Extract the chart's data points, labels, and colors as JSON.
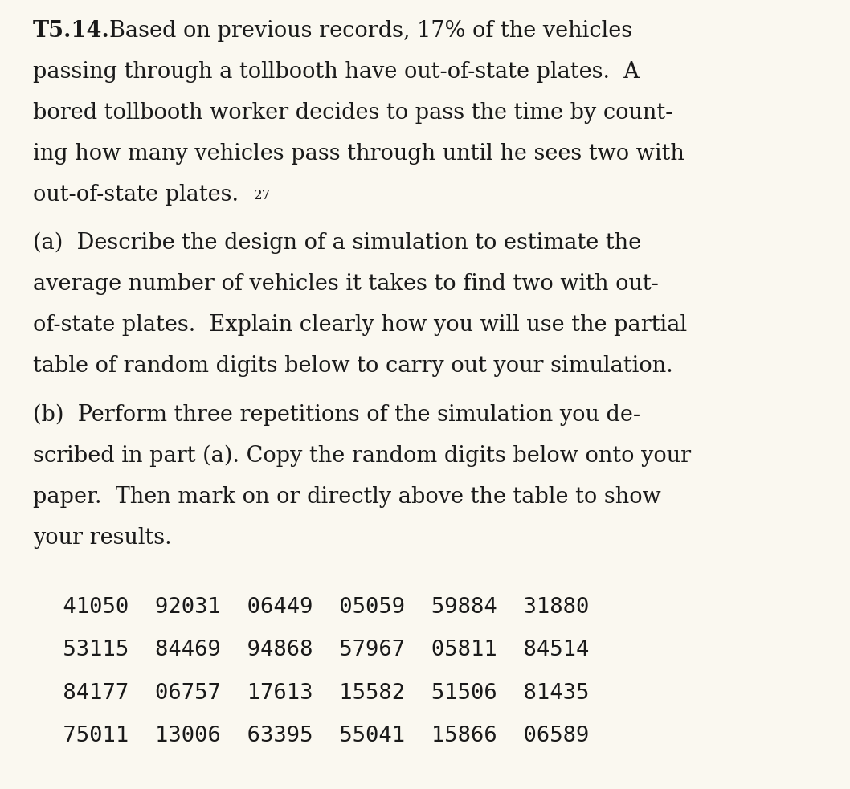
{
  "background_color": "#faf8f0",
  "text_color": "#1a1a1a",
  "figsize": [
    10.58,
    9.82
  ],
  "dpi": 100,
  "font_size_main": 19.5,
  "font_size_table": 19.5,
  "random_table": [
    " 41050  92031  06449  05059  59884  31880",
    " 53115  84469  94868  57967  05811  84514",
    " 84177  06757  17613  15582  51506  81435",
    " 75011  13006  63395  55041  15866  06589"
  ]
}
